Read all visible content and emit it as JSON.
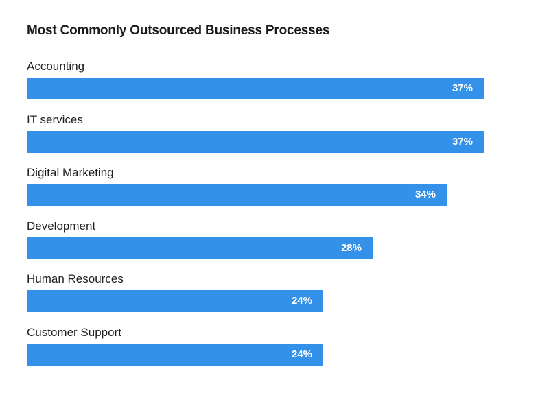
{
  "chart_data": {
    "type": "bar",
    "orientation": "horizontal",
    "title": "Most Commonly Outsourced Business Processes",
    "categories": [
      "Accounting",
      "IT services",
      "Digital Marketing",
      "Development",
      "Human Resources",
      "Customer Support"
    ],
    "values": [
      37,
      37,
      34,
      28,
      24,
      24
    ],
    "value_labels": [
      "37%",
      "37%",
      "34%",
      "28%",
      "24%",
      "24%"
    ],
    "unit": "%",
    "xlim": [
      0,
      40
    ],
    "grid": false,
    "legend": "none"
  },
  "colors": {
    "bar": "#3391ea",
    "label": "#ffffff",
    "title": "#1a1a1a"
  }
}
